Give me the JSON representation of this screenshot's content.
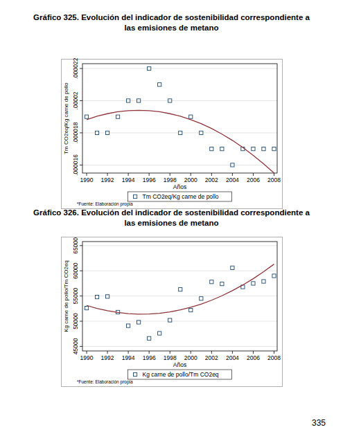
{
  "chart_data": [
    {
      "type": "scatter",
      "title": "Gráfico 325. Evolución del indicador de sostenibilidad correspondiente a las emisiones de metano",
      "x_label": "Años",
      "y_label": "Tm CO2eq/Kg carne de pollo",
      "note": "*Fuente: Elaboración propia",
      "x": [
        1990,
        1991,
        1992,
        1993,
        1994,
        1995,
        1996,
        1997,
        1998,
        1999,
        2000,
        2001,
        2002,
        2003,
        2004,
        2005,
        2006,
        2007,
        2008
      ],
      "series": [
        {
          "name": "Tm CO2eq/Kg carne de pollo",
          "type": "scatter",
          "marker": "square",
          "color": "#1a476f",
          "values": [
            1.9e-05,
            1.8e-05,
            1.8e-05,
            1.9e-05,
            2e-05,
            2e-05,
            2.2e-05,
            2.1e-05,
            2e-05,
            1.8e-05,
            1.9e-05,
            1.8e-05,
            1.7e-05,
            1.7e-05,
            1.6e-05,
            1.7e-05,
            1.7e-05,
            1.7e-05,
            1.7e-05
          ]
        },
        {
          "type": "line",
          "line_style": "solid",
          "color": "#90353b",
          "values": [
            1.882e-05,
            1.903e-05,
            1.919e-05,
            1.931e-05,
            1.938e-05,
            1.94e-05,
            1.938e-05,
            1.931e-05,
            1.919e-05,
            1.903e-05,
            1.882e-05,
            1.857e-05,
            1.827e-05,
            1.792e-05,
            1.753e-05,
            1.709e-05,
            1.66e-05,
            1.607e-05,
            1.55e-05
          ]
        }
      ],
      "xlim": [
        1989.6,
        2008.3
      ],
      "xticks": [
        1990,
        1992,
        1994,
        1996,
        1998,
        2000,
        2002,
        2004,
        2006,
        2008
      ],
      "ylim": [
        1.55e-05,
        2.23e-05
      ],
      "yticks": [
        {
          "value": 1.6e-05,
          "label": ".000016"
        },
        {
          "value": 1.8e-05,
          "label": ".000018"
        },
        {
          "value": 2e-05,
          "label": ".00002"
        },
        {
          "value": 2.2e-05,
          "label": ".000022"
        }
      ],
      "grid": true,
      "legend": "bottom"
    },
    {
      "type": "scatter",
      "title": "Gráfico 326. Evolución del indicador de sostenibilidad correspondiente a las emisiones de metano",
      "x_label": "Años",
      "y_label": "Kg carne de pollo/Tm CO2eq",
      "note": "*Fuente: Elaboración propia",
      "x": [
        1990,
        1991,
        1992,
        1993,
        1994,
        1995,
        1996,
        1997,
        1998,
        1999,
        2000,
        2001,
        2002,
        2003,
        2004,
        2005,
        2006,
        2007,
        2008
      ],
      "series": [
        {
          "name": "Kg carne de pollo/Tm CO2eq",
          "type": "scatter",
          "marker": "square",
          "color": "#1a476f",
          "values": [
            52600,
            54800,
            54900,
            51800,
            49100,
            49800,
            46600,
            47600,
            50200,
            56300,
            52200,
            54500,
            57800,
            57400,
            60600,
            56800,
            57500,
            57900,
            59000
          ]
        },
        {
          "type": "line",
          "line_style": "solid",
          "color": "#90353b",
          "values": [
            53130,
            52540,
            52070,
            51730,
            51500,
            51410,
            51430,
            51580,
            51850,
            52240,
            52760,
            53400,
            54160,
            55050,
            56060,
            57190,
            58440,
            59820,
            61320
          ]
        }
      ],
      "xlim": [
        1989.6,
        2008.3
      ],
      "xticks": [
        1990,
        1992,
        1994,
        1996,
        1998,
        2000,
        2002,
        2004,
        2006,
        2008
      ],
      "ylim": [
        44100,
        65800
      ],
      "yticks": [
        45000,
        50000,
        55000,
        60000,
        65000
      ],
      "grid": true,
      "legend": "bottom"
    }
  ],
  "page_number": "335"
}
